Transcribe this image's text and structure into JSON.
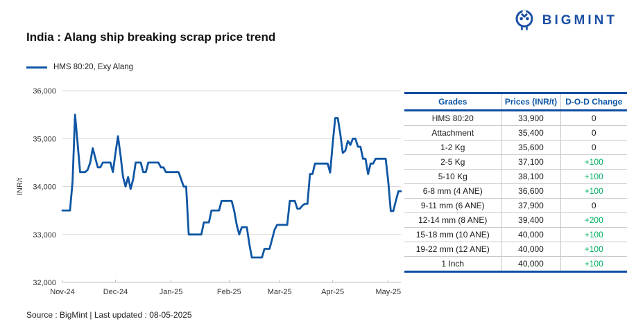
{
  "logo": {
    "text": "BIGMINT",
    "color": "#1B4FA3"
  },
  "title": "India : Alang ship breaking scrap price trend",
  "legend": {
    "label": "HMS 80:20, Exy Alang",
    "color": "#0F56A4"
  },
  "footer": {
    "text": "Source : BigMint | Last updated : 08-05-2025"
  },
  "table": {
    "columns": [
      "Grades",
      "Prices (INR/t)",
      "D-O-D Change"
    ],
    "rows": [
      {
        "grade": "HMS 80:20",
        "price": "33,900",
        "change": "0"
      },
      {
        "grade": "Attachment",
        "price": "35,400",
        "change": "0"
      },
      {
        "grade": "1-2 Kg",
        "price": "35,600",
        "change": "0"
      },
      {
        "grade": "2-5 Kg",
        "price": "37,100",
        "change": "+100"
      },
      {
        "grade": "5-10 Kg",
        "price": "38,100",
        "change": "+100"
      },
      {
        "grade": "6-8 mm (4 ANE)",
        "price": "36,600",
        "change": "+100"
      },
      {
        "grade": "9-11 mm (6 ANE)",
        "price": "37,900",
        "change": "0"
      },
      {
        "grade": "12-14 mm (8 ANE)",
        "price": "39,400",
        "change": "+200"
      },
      {
        "grade": "15-18 mm (10 ANE)",
        "price": "40,000",
        "change": "+100"
      },
      {
        "grade": "19-22 mm (12 ANE)",
        "price": "40,000",
        "change": "+100"
      },
      {
        "grade": "1 Inch",
        "price": "40,000",
        "change": "+100"
      }
    ],
    "positive_color": "#00AF5F",
    "header_color": "#0C55A5",
    "border_color": "#0C4DA2"
  },
  "chart_data": {
    "type": "line",
    "title": "India : Alang ship breaking scrap price trend",
    "ylabel": "INR/t",
    "xlabel": "",
    "ylim": [
      32000,
      36000
    ],
    "yticks": [
      32000,
      33000,
      34000,
      35000,
      36000
    ],
    "grid": "horizontal",
    "legend_position": "top-left",
    "x_tick_labels": [
      {
        "label": "Nov-24",
        "index": 0
      },
      {
        "label": "Dec-24",
        "index": 21
      },
      {
        "label": "Jan-25",
        "index": 43
      },
      {
        "label": "Feb-25",
        "index": 66
      },
      {
        "label": "Mar-25",
        "index": 86
      },
      {
        "label": "Apr-25",
        "index": 107
      },
      {
        "label": "May-25",
        "index": 129
      }
    ],
    "series": [
      {
        "name": "HMS 80:20, Exy Alang",
        "color": "#0F56A4",
        "values": [
          33500,
          33500,
          33500,
          33500,
          34100,
          35500,
          34900,
          34300,
          34300,
          34300,
          34350,
          34500,
          34800,
          34600,
          34400,
          34400,
          34500,
          34500,
          34500,
          34500,
          34300,
          34700,
          35050,
          34650,
          34200,
          34000,
          34200,
          33950,
          34150,
          34500,
          34500,
          34500,
          34300,
          34300,
          34500,
          34500,
          34500,
          34500,
          34500,
          34400,
          34400,
          34300,
          34300,
          34300,
          34300,
          34300,
          34300,
          34150,
          34000,
          34000,
          33000,
          33000,
          33000,
          33000,
          33000,
          33000,
          33250,
          33250,
          33250,
          33500,
          33500,
          33500,
          33500,
          33700,
          33700,
          33700,
          33700,
          33700,
          33500,
          33200,
          33000,
          33150,
          33150,
          33150,
          32800,
          32520,
          32520,
          32520,
          32520,
          32520,
          32700,
          32700,
          32700,
          32900,
          33100,
          33200,
          33200,
          33200,
          33200,
          33200,
          33700,
          33700,
          33700,
          33540,
          33540,
          33600,
          33640,
          33640,
          34260,
          34260,
          34480,
          34480,
          34480,
          34480,
          34480,
          34480,
          34290,
          34900,
          35430,
          35430,
          35100,
          34700,
          34750,
          34950,
          34870,
          35000,
          35000,
          34830,
          34830,
          34580,
          34580,
          34260,
          34480,
          34480,
          34580,
          34580,
          34580,
          34580,
          34580,
          34100,
          33490,
          33490,
          33700,
          33900,
          33900
        ]
      }
    ]
  }
}
